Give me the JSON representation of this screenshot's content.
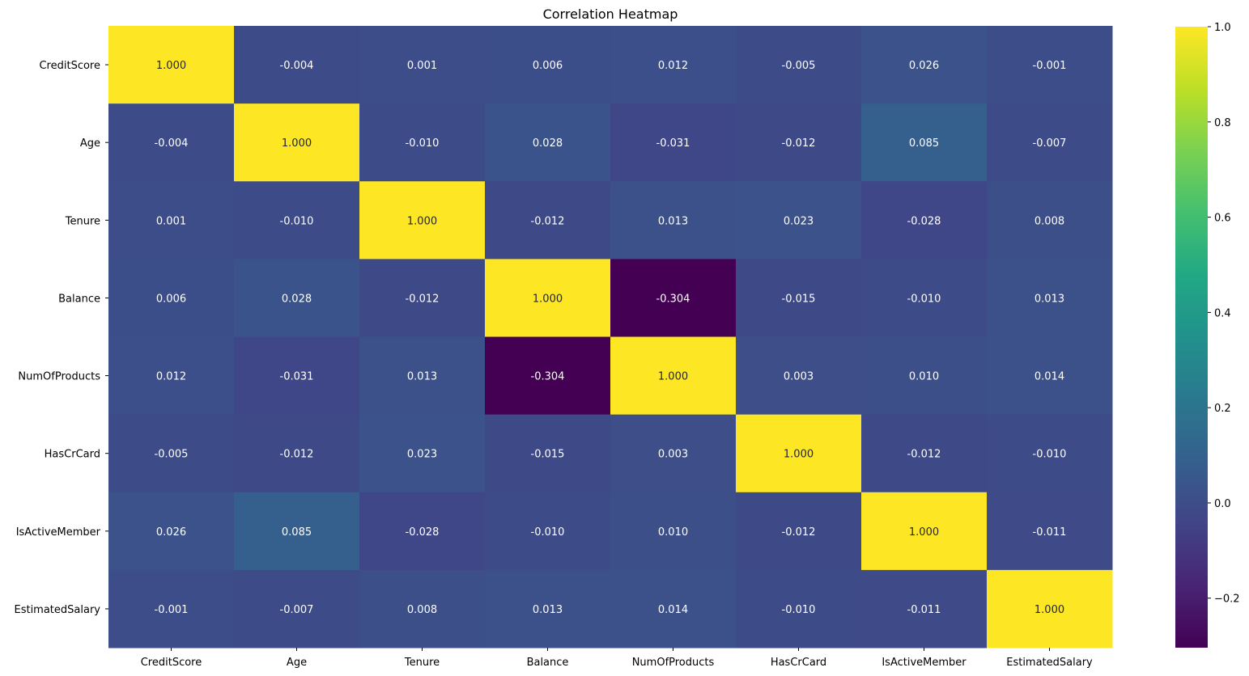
{
  "chart_data": {
    "type": "heatmap",
    "title": "Correlation Heatmap",
    "xlabel": "",
    "ylabel": "",
    "x_categories": [
      "CreditScore",
      "Age",
      "Tenure",
      "Balance",
      "NumOfProducts",
      "HasCrCard",
      "IsActiveMember",
      "EstimatedSalary"
    ],
    "y_categories": [
      "CreditScore",
      "Age",
      "Tenure",
      "Balance",
      "NumOfProducts",
      "HasCrCard",
      "IsActiveMember",
      "EstimatedSalary"
    ],
    "values": [
      [
        1.0,
        -0.004,
        0.001,
        0.006,
        0.012,
        -0.005,
        0.026,
        -0.001
      ],
      [
        -0.004,
        1.0,
        -0.01,
        0.028,
        -0.031,
        -0.012,
        0.085,
        -0.007
      ],
      [
        0.001,
        -0.01,
        1.0,
        -0.012,
        0.013,
        0.023,
        -0.028,
        0.008
      ],
      [
        0.006,
        0.028,
        -0.012,
        1.0,
        -0.304,
        -0.015,
        -0.01,
        0.013
      ],
      [
        0.012,
        -0.031,
        0.013,
        -0.304,
        1.0,
        0.003,
        0.01,
        0.014
      ],
      [
        -0.005,
        -0.012,
        0.023,
        -0.015,
        0.003,
        1.0,
        -0.012,
        -0.01
      ],
      [
        0.026,
        0.085,
        -0.028,
        -0.01,
        0.01,
        -0.012,
        1.0,
        -0.011
      ],
      [
        -0.001,
        -0.007,
        0.008,
        0.013,
        0.014,
        -0.01,
        -0.011,
        1.0
      ]
    ],
    "value_format": "0.000",
    "colormap": "viridis",
    "vmin": -0.304,
    "vmax": 1.0,
    "colorbar_ticks": [
      -0.2,
      0.0,
      0.2,
      0.4,
      0.6,
      0.8,
      1.0
    ],
    "colorbar_tick_labels": [
      "−0.2",
      "0.0",
      "0.2",
      "0.4",
      "0.6",
      "0.8",
      "1.0"
    ],
    "grid": false,
    "legend": "colorbar-right"
  }
}
